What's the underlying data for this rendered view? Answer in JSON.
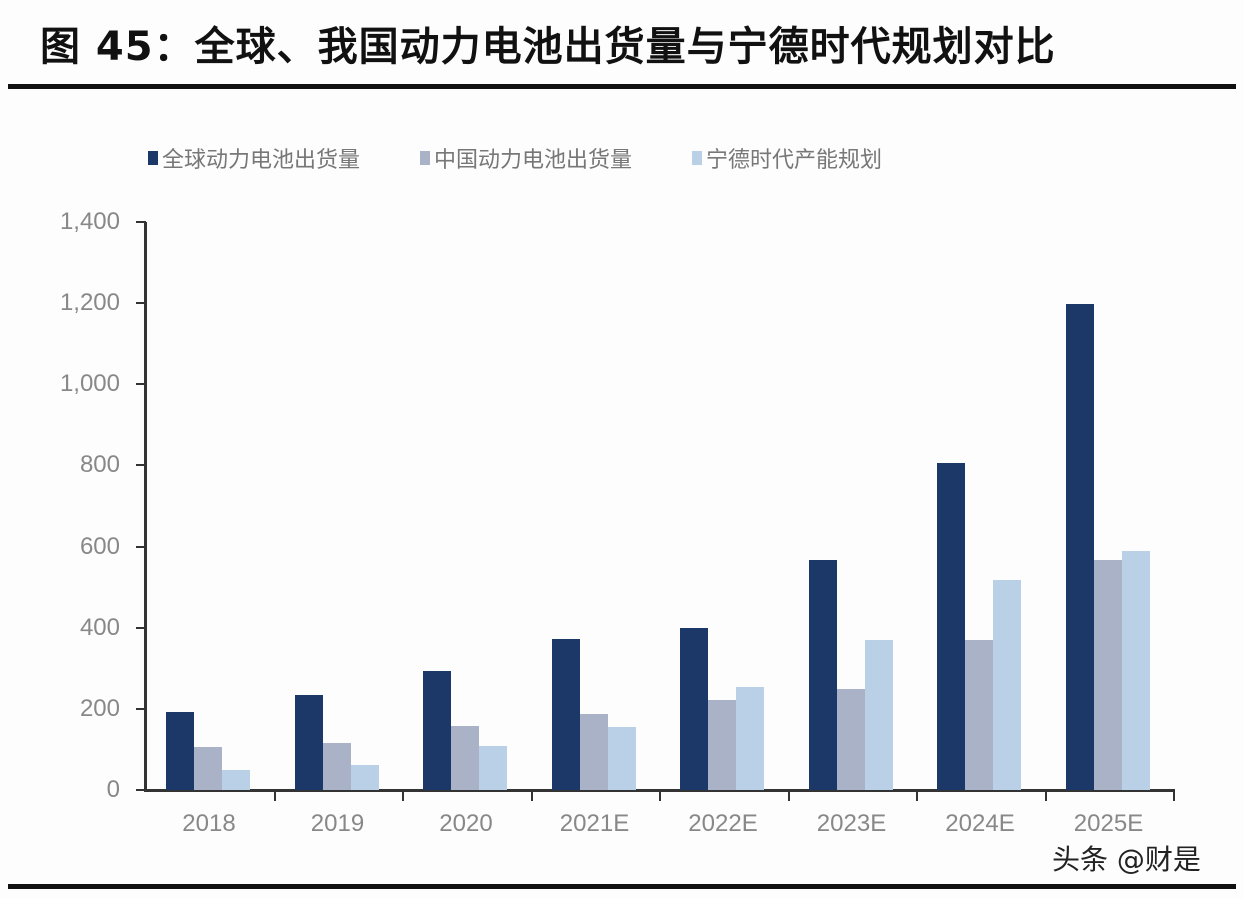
{
  "title": "图 45：全球、我国动力电池出货量与宁德时代规划对比",
  "watermark": "头条 @财是",
  "colors": {
    "series_global": "#1b3868",
    "series_china": "#a9b2c6",
    "series_catl": "#b9d0e6",
    "axis": "#333333",
    "tick_text": "#888888"
  },
  "legend": [
    {
      "label": "全球动力电池出货量",
      "color": "#1b3868"
    },
    {
      "label": "中国动力电池出货量",
      "color": "#a9b2c6"
    },
    {
      "label": "宁德时代产能规划",
      "color": "#b9d0e6"
    }
  ],
  "chart_data": {
    "type": "bar",
    "title": "图 45：全球、我国动力电池出货量与宁德时代规划对比",
    "xlabel": "",
    "ylabel": "",
    "categories": [
      "2018",
      "2019",
      "2020",
      "2021E",
      "2022E",
      "2023E",
      "2024E",
      "2025E"
    ],
    "series": [
      {
        "name": "全球动力电池出货量",
        "values": [
          193,
          235,
          293,
          372,
          400,
          567,
          806,
          1198
        ]
      },
      {
        "name": "中国动力电池出货量",
        "values": [
          105,
          115,
          158,
          188,
          222,
          250,
          370,
          567
        ]
      },
      {
        "name": "宁德时代产能规划",
        "values": [
          50,
          62,
          108,
          155,
          255,
          370,
          518,
          590
        ]
      }
    ],
    "ylim": [
      0,
      1400
    ],
    "yticks": [
      "0",
      "200",
      "400",
      "600",
      "800",
      "1,000",
      "1,200",
      "1,400"
    ],
    "grid": false,
    "legend_position": "top"
  }
}
